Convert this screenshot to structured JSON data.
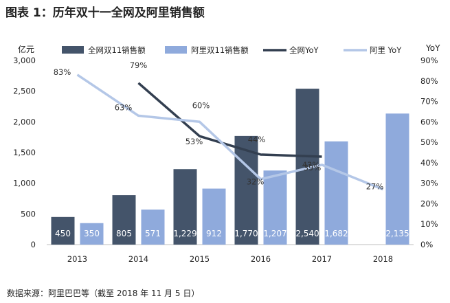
{
  "title": "图表 1：历年双十一全网及阿里销售额",
  "source": "数据来源：阿里巴巴等（截至 2018 年 11 月 5 日）",
  "chart_data": {
    "type": "bar",
    "categories": [
      "2013",
      "2014",
      "2015",
      "2016",
      "2017",
      "2018"
    ],
    "series": [
      {
        "name": "全网双11销售额",
        "kind": "bar",
        "axis": "left",
        "color": "#44546a",
        "values": [
          450,
          805,
          1229,
          1770,
          2540,
          null
        ],
        "labels": [
          "450",
          "805",
          "1,229",
          "1,770",
          "2,540",
          ""
        ]
      },
      {
        "name": "阿里双11销售额",
        "kind": "bar",
        "axis": "left",
        "color": "#8faadc",
        "values": [
          350,
          571,
          912,
          1207,
          1682,
          2135
        ],
        "labels": [
          "350",
          "571",
          "912",
          "1,207",
          "1,682",
          "2,135"
        ]
      },
      {
        "name": "全网YoY",
        "kind": "line",
        "axis": "right",
        "color": "#333f50",
        "values": [
          null,
          79,
          53,
          44,
          43,
          null
        ],
        "labels": [
          "",
          "79%",
          "53%",
          "44%",
          "43%",
          ""
        ]
      },
      {
        "name": "阿里 YoY",
        "kind": "line",
        "axis": "right",
        "color": "#b4c7e7",
        "values": [
          83,
          63,
          60,
          32,
          39,
          27
        ],
        "labels": [
          "83%",
          "63%",
          "60%",
          "32%",
          "39%",
          "27%"
        ]
      }
    ],
    "y_left": {
      "unit": "亿元",
      "min": 0,
      "max": 3000,
      "ticks": [
        "0",
        "500",
        "1,000",
        "1,500",
        "2,000",
        "2,500",
        "3,000"
      ]
    },
    "y_right": {
      "unit": "YoY",
      "min": 0,
      "max": 90,
      "ticks": [
        "0%",
        "10%",
        "20%",
        "30%",
        "40%",
        "50%",
        "60%",
        "70%",
        "80%",
        "90%"
      ]
    },
    "grid": false,
    "legend_position": "top"
  }
}
